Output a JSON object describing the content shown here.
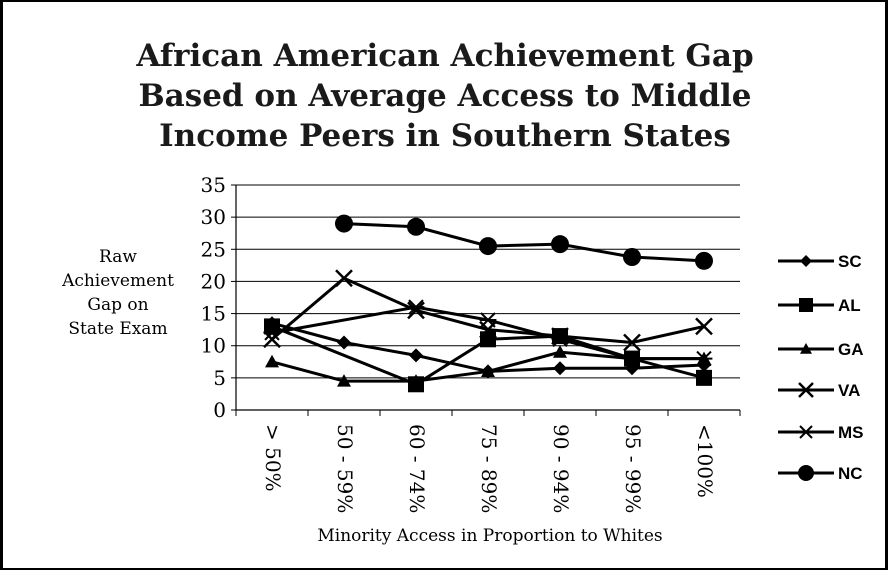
{
  "chart_data": {
    "type": "line",
    "title": [
      "African American Achievement Gap",
      "Based on Average Access to Middle",
      "Income Peers in Southern States"
    ],
    "ylabel": [
      "Raw",
      "Achievement",
      "Gap on",
      "State Exam"
    ],
    "xlabel": "Minority Access in Proportion to Whites",
    "categories": [
      "> 50%",
      "50 - 59%",
      "60 - 74%",
      "75 - 89%",
      "90 - 94%",
      "95 - 99%",
      "<100%"
    ],
    "ylim": [
      0,
      35
    ],
    "yticks": [
      0,
      5,
      10,
      15,
      20,
      25,
      30,
      35
    ],
    "grid": true,
    "legend_position": "right",
    "series": [
      {
        "name": "SC",
        "marker": "diamond",
        "values": [
          13.5,
          10.5,
          8.5,
          6,
          6.5,
          6.5,
          7
        ]
      },
      {
        "name": "AL",
        "marker": "square",
        "values": [
          13,
          null,
          4,
          11,
          11.5,
          8,
          5
        ]
      },
      {
        "name": "GA",
        "marker": "triangle",
        "values": [
          7.5,
          4.5,
          4.5,
          6,
          9,
          8,
          8
        ]
      },
      {
        "name": "VA",
        "marker": "x",
        "values": [
          11,
          20.5,
          15.5,
          12.5,
          11.5,
          10.5,
          13
        ]
      },
      {
        "name": "MS",
        "marker": "asterisk",
        "values": [
          12,
          null,
          16,
          14,
          11,
          8,
          8
        ]
      },
      {
        "name": "NC",
        "marker": "circle",
        "values": [
          null,
          29,
          28.5,
          25.5,
          25.8,
          23.8,
          23.2
        ]
      }
    ]
  }
}
